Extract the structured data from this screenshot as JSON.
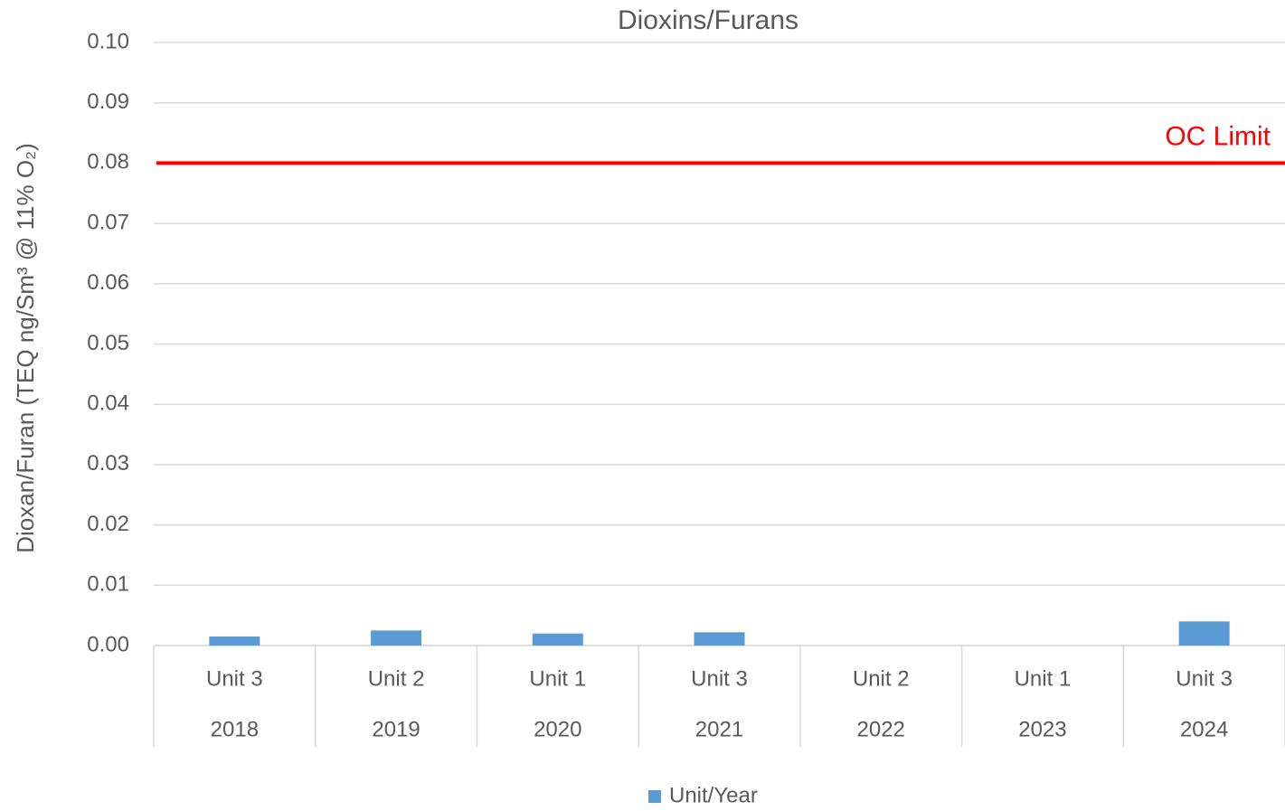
{
  "chart_data": {
    "type": "bar",
    "title": "Dioxins/Furans",
    "y_label": "Dioxan/Furan (TEQ ng/Sm³ @ 11% O₂)",
    "categories": [
      "Unit 3",
      "Unit 2",
      "Unit 1",
      "Unit 3",
      "Unit 2",
      "Unit 1",
      "Unit 3"
    ],
    "category_years": [
      "2018",
      "2019",
      "2020",
      "2021",
      "2022",
      "2023",
      "2024"
    ],
    "series": [
      {
        "name": "Unit/Year",
        "color": "#5b9bd5",
        "values": [
          0.0015,
          0.0025,
          0.002,
          0.0022,
          null,
          null,
          0.004
        ]
      }
    ],
    "ylim": [
      0,
      0.1
    ],
    "yticks": [
      {
        "value": 0,
        "label": "0.00"
      },
      {
        "value": 0.01,
        "label": "0.01"
      },
      {
        "value": 0.02,
        "label": "0.02"
      },
      {
        "value": 0.03,
        "label": "0.03"
      },
      {
        "value": 0.04,
        "label": "0.04"
      },
      {
        "value": 0.05,
        "label": "0.05"
      },
      {
        "value": 0.06,
        "label": "0.06"
      },
      {
        "value": 0.07,
        "label": "0.07"
      },
      {
        "value": 0.08,
        "label": "0.08"
      },
      {
        "value": 0.09,
        "label": "0.09"
      },
      {
        "value": 0.1,
        "label": "0.10"
      }
    ],
    "grid": true,
    "reference_lines": [
      {
        "value": 0.08,
        "label": "OC Limit",
        "color": "#ff0000"
      }
    ],
    "legend": "bottom"
  }
}
